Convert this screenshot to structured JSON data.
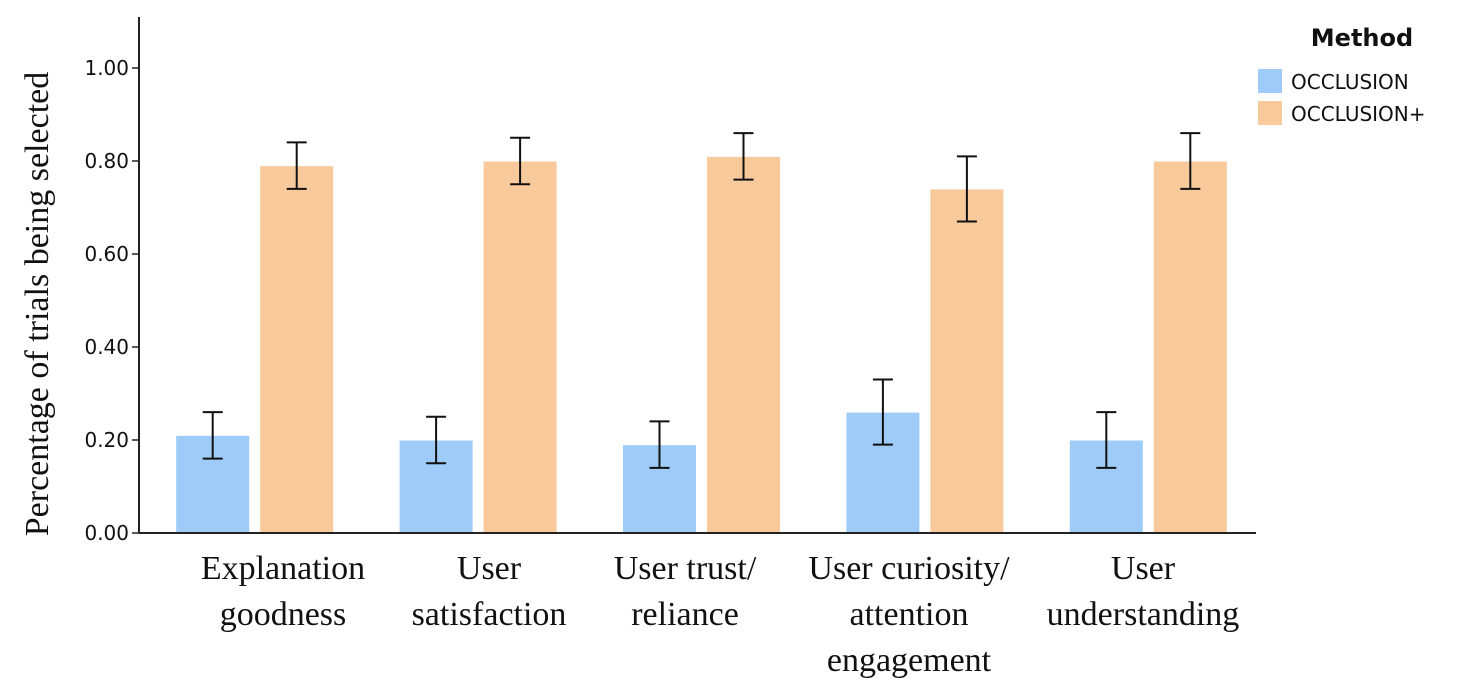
{
  "chart_data": {
    "type": "bar",
    "categories": [
      [
        "Explanation",
        "goodness"
      ],
      [
        "User",
        "satisfaction"
      ],
      [
        "User trust/",
        "reliance"
      ],
      [
        "User curiosity/",
        "attention",
        "engagement"
      ],
      [
        "User",
        "understanding"
      ]
    ],
    "series": [
      {
        "name": "OCCLUSION",
        "color": "#9ecbf7",
        "values": [
          0.21,
          0.2,
          0.19,
          0.26,
          0.2
        ],
        "err_low": [
          0.16,
          0.15,
          0.14,
          0.19,
          0.14
        ],
        "err_high": [
          0.26,
          0.25,
          0.24,
          0.33,
          0.26
        ]
      },
      {
        "name": "OCCLUSION+",
        "color": "#f8c99b",
        "values": [
          0.79,
          0.8,
          0.81,
          0.74,
          0.8
        ],
        "err_low": [
          0.74,
          0.75,
          0.76,
          0.67,
          0.74
        ],
        "err_high": [
          0.84,
          0.85,
          0.86,
          0.81,
          0.86
        ]
      }
    ],
    "ylabel": "Percentage of trials being selected",
    "xlabel": "",
    "ylim": [
      0,
      1.1
    ],
    "yticks": [
      "0.00",
      "0.20",
      "0.40",
      "0.60",
      "0.80",
      "1.00"
    ],
    "legend": {
      "title": "Method",
      "placement": "top-right"
    },
    "grid": false
  }
}
